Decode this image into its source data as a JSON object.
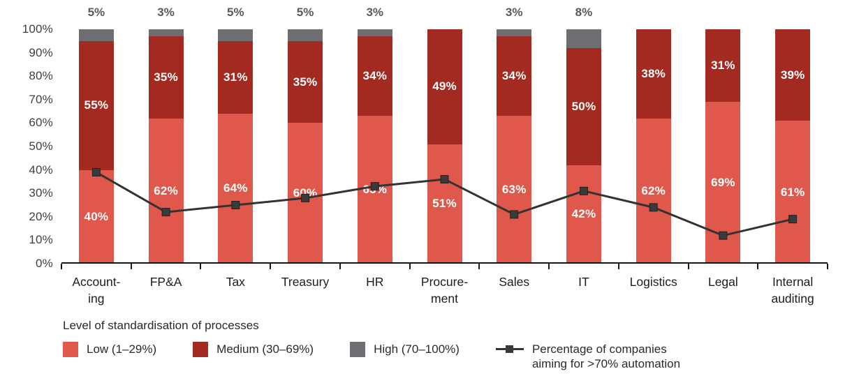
{
  "chart_data": {
    "type": "stacked-bar-with-line",
    "categories": [
      "Accounting",
      "FP&A",
      "Tax",
      "Treasury",
      "HR",
      "Procurement",
      "Sales",
      "IT",
      "Logistics",
      "Legal",
      "Internal auditing"
    ],
    "category_label_lines": [
      [
        "Account-",
        "ing"
      ],
      [
        "FP&A"
      ],
      [
        "Tax"
      ],
      [
        "Treasury"
      ],
      [
        "HR"
      ],
      [
        "Procure-",
        "ment"
      ],
      [
        "Sales"
      ],
      [
        "IT"
      ],
      [
        "Logistics"
      ],
      [
        "Legal"
      ],
      [
        "Internal",
        "auditing"
      ]
    ],
    "series": [
      {
        "name": "Low (1–29%)",
        "key": "low",
        "color": "#e0584b",
        "show_labels_inside": true,
        "values": [
          40,
          62,
          64,
          60,
          63,
          51,
          63,
          42,
          62,
          69,
          61
        ]
      },
      {
        "name": "Medium (30–69%)",
        "key": "medium",
        "color": "#a32a20",
        "show_labels_inside": true,
        "values": [
          55,
          35,
          31,
          35,
          34,
          49,
          34,
          50,
          38,
          31,
          39
        ]
      },
      {
        "name": "High (70–100%)",
        "key": "high",
        "color": "#6d6e71",
        "show_labels_inside": false,
        "labels_above_bar": true,
        "values": [
          5,
          3,
          5,
          5,
          3,
          0,
          3,
          8,
          0,
          0,
          0
        ]
      }
    ],
    "line_series": {
      "name": "Percentage of companies aiming for >70% automation",
      "legend_label_lines": [
        "Percentage of companies",
        "aiming for >70% automation"
      ],
      "color": "#333333",
      "marker": "square",
      "marker_color": "#3a3a3a",
      "values": [
        39,
        22,
        25,
        28,
        33,
        36,
        21,
        31,
        24,
        12,
        19
      ]
    },
    "y_axis": {
      "min": 0,
      "max": 100,
      "step": 10,
      "tick_labels": [
        "0%",
        "10%",
        "20%",
        "30%",
        "40%",
        "50%",
        "60%",
        "70%",
        "80%",
        "90%",
        "100%"
      ]
    },
    "legend": {
      "title": "Level of standardisation of processes"
    },
    "value_suffix": "%",
    "grid": "off",
    "legend_position": "bottom"
  }
}
